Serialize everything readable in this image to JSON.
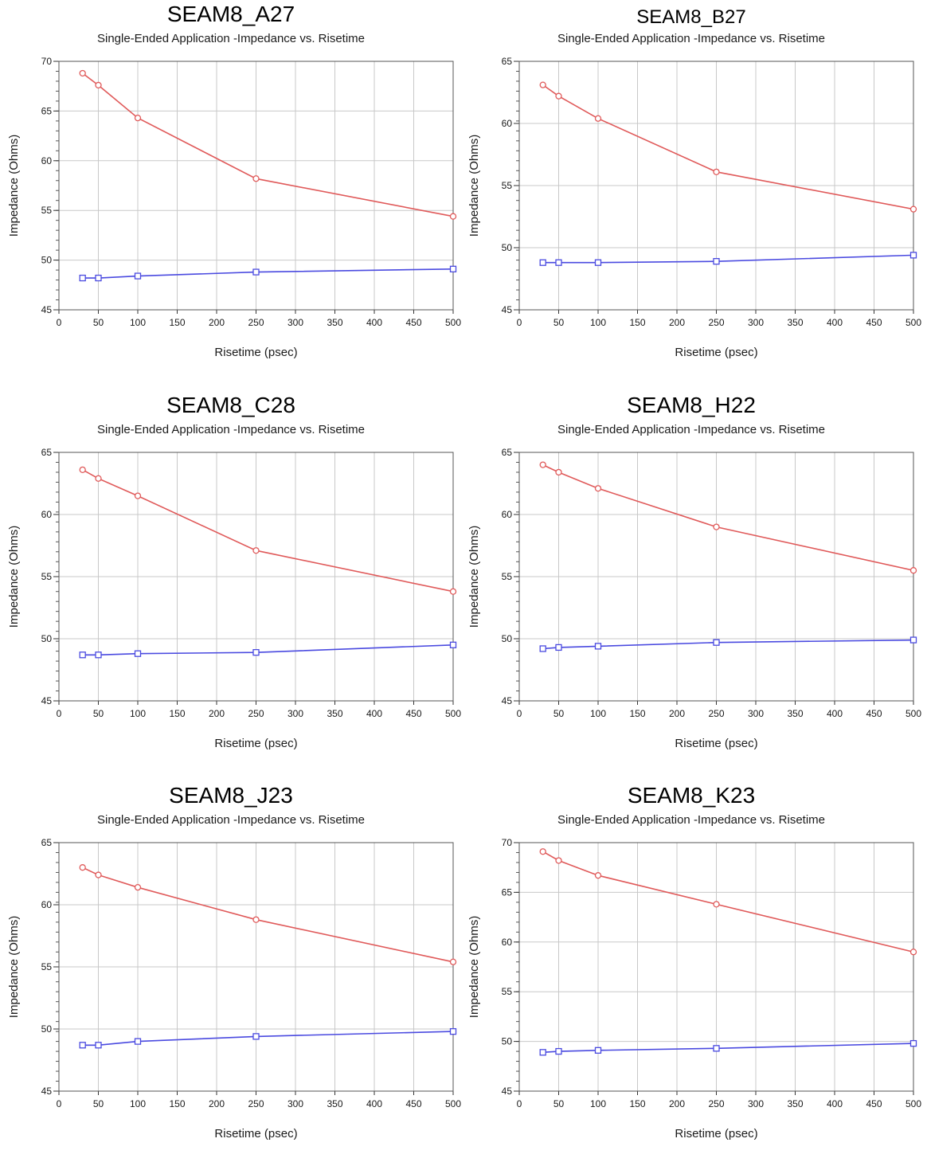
{
  "chart_data": [
    {
      "type": "line",
      "title": "SEAM8_A27",
      "subtitle": "Single-Ended Application -Impedance vs. Risetime",
      "xlabel": "Risetime (psec)",
      "ylabel": "Impedance (Ohms)",
      "xlim": [
        0,
        500
      ],
      "ylim": [
        45,
        70
      ],
      "xticks": [
        0,
        50,
        100,
        150,
        200,
        250,
        300,
        350,
        400,
        450,
        500
      ],
      "yticks": [
        45,
        50,
        55,
        60,
        65,
        70
      ],
      "grid": true,
      "series": [
        {
          "color": "#e05a5a",
          "marker": "circle",
          "x": [
            30,
            50,
            100,
            250,
            500
          ],
          "y": [
            68.8,
            67.6,
            64.3,
            58.2,
            54.4
          ]
        },
        {
          "color": "#4a4ae0",
          "marker": "square",
          "x": [
            30,
            50,
            100,
            250,
            500
          ],
          "y": [
            48.2,
            48.2,
            48.4,
            48.8,
            49.1
          ]
        }
      ]
    },
    {
      "type": "line",
      "title": "SEAM8_B27",
      "subtitle": "Single-Ended Application -Impedance vs. Risetime",
      "xlabel": "Risetime (psec)",
      "ylabel": "Impedance (Ohms)",
      "xlim": [
        0,
        500
      ],
      "ylim": [
        45,
        65
      ],
      "xticks": [
        0,
        50,
        100,
        150,
        200,
        250,
        300,
        350,
        400,
        450,
        500
      ],
      "yticks": [
        45,
        50,
        55,
        60,
        65
      ],
      "grid": true,
      "series": [
        {
          "color": "#e05a5a",
          "marker": "circle",
          "x": [
            30,
            50,
            100,
            250,
            500
          ],
          "y": [
            63.1,
            62.2,
            60.4,
            56.1,
            53.1
          ]
        },
        {
          "color": "#4a4ae0",
          "marker": "square",
          "x": [
            30,
            50,
            100,
            250,
            500
          ],
          "y": [
            48.8,
            48.8,
            48.8,
            48.9,
            49.4
          ]
        }
      ]
    },
    {
      "type": "line",
      "title": "SEAM8_C28",
      "subtitle": "Single-Ended Application -Impedance vs. Risetime",
      "xlabel": "Risetime (psec)",
      "ylabel": "Impedance (Ohms)",
      "xlim": [
        0,
        500
      ],
      "ylim": [
        45,
        65
      ],
      "xticks": [
        0,
        50,
        100,
        150,
        200,
        250,
        300,
        350,
        400,
        450,
        500
      ],
      "yticks": [
        45,
        50,
        55,
        60,
        65
      ],
      "grid": true,
      "series": [
        {
          "color": "#e05a5a",
          "marker": "circle",
          "x": [
            30,
            50,
            100,
            250,
            500
          ],
          "y": [
            63.6,
            62.9,
            61.5,
            57.1,
            53.8
          ]
        },
        {
          "color": "#4a4ae0",
          "marker": "square",
          "x": [
            30,
            50,
            100,
            250,
            500
          ],
          "y": [
            48.7,
            48.7,
            48.8,
            48.9,
            49.5
          ]
        }
      ]
    },
    {
      "type": "line",
      "title": "SEAM8_H22",
      "subtitle": "Single-Ended Application -Impedance vs. Risetime",
      "xlabel": "Risetime (psec)",
      "ylabel": "Impedance (Ohms)",
      "xlim": [
        0,
        500
      ],
      "ylim": [
        45,
        65
      ],
      "xticks": [
        0,
        50,
        100,
        150,
        200,
        250,
        300,
        350,
        400,
        450,
        500
      ],
      "yticks": [
        45,
        50,
        55,
        60,
        65
      ],
      "grid": true,
      "series": [
        {
          "color": "#e05a5a",
          "marker": "circle",
          "x": [
            30,
            50,
            100,
            250,
            500
          ],
          "y": [
            64.0,
            63.4,
            62.1,
            59.0,
            55.5
          ]
        },
        {
          "color": "#4a4ae0",
          "marker": "square",
          "x": [
            30,
            50,
            100,
            250,
            500
          ],
          "y": [
            49.2,
            49.3,
            49.4,
            49.7,
            49.9
          ]
        }
      ]
    },
    {
      "type": "line",
      "title": "SEAM8_J23",
      "subtitle": "Single-Ended Application -Impedance vs. Risetime",
      "xlabel": "Risetime (psec)",
      "ylabel": "Impedance (Ohms)",
      "xlim": [
        0,
        500
      ],
      "ylim": [
        45,
        65
      ],
      "xticks": [
        0,
        50,
        100,
        150,
        200,
        250,
        300,
        350,
        400,
        450,
        500
      ],
      "yticks": [
        45,
        50,
        55,
        60,
        65
      ],
      "grid": true,
      "series": [
        {
          "color": "#e05a5a",
          "marker": "circle",
          "x": [
            30,
            50,
            100,
            250,
            500
          ],
          "y": [
            63.0,
            62.4,
            61.4,
            58.8,
            55.4
          ]
        },
        {
          "color": "#4a4ae0",
          "marker": "square",
          "x": [
            30,
            50,
            100,
            250,
            500
          ],
          "y": [
            48.7,
            48.7,
            49.0,
            49.4,
            49.8
          ]
        }
      ]
    },
    {
      "type": "line",
      "title": "SEAM8_K23",
      "subtitle": "Single-Ended Application -Impedance vs. Risetime",
      "xlabel": "Risetime (psec)",
      "ylabel": "Impedance (Ohms)",
      "xlim": [
        0,
        500
      ],
      "ylim": [
        45,
        70
      ],
      "xticks": [
        0,
        50,
        100,
        150,
        200,
        250,
        300,
        350,
        400,
        450,
        500
      ],
      "yticks": [
        45,
        50,
        55,
        60,
        65,
        70
      ],
      "grid": true,
      "series": [
        {
          "color": "#e05a5a",
          "marker": "circle",
          "x": [
            30,
            50,
            100,
            250,
            500
          ],
          "y": [
            69.1,
            68.2,
            66.7,
            63.8,
            59.0
          ]
        },
        {
          "color": "#4a4ae0",
          "marker": "square",
          "x": [
            30,
            50,
            100,
            250,
            500
          ],
          "y": [
            48.9,
            49.0,
            49.1,
            49.3,
            49.8
          ]
        }
      ]
    }
  ]
}
